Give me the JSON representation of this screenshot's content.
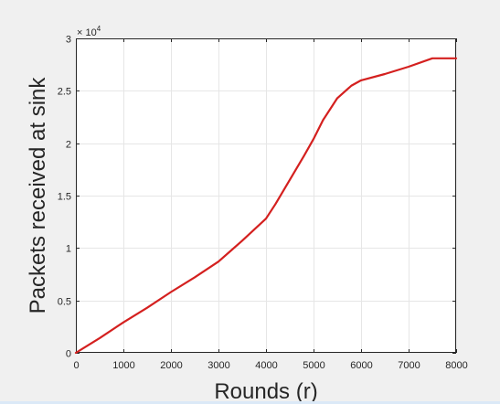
{
  "chart_data": {
    "type": "line",
    "title": "",
    "xlabel": "Rounds (r)",
    "ylabel": "Packets received at sink",
    "exponent_label": "× 10",
    "exponent_power": "4",
    "xlim": [
      0,
      8000
    ],
    "ylim": [
      0,
      3
    ],
    "x_ticks": [
      "0",
      "1000",
      "2000",
      "3000",
      "4000",
      "5000",
      "6000",
      "7000",
      "8000"
    ],
    "y_ticks": [
      "0",
      "0.5",
      "1",
      "1.5",
      "2",
      "2.5",
      "3"
    ],
    "grid": true,
    "line_color": "#d4201f",
    "series": [
      {
        "x": [
          0,
          500,
          1000,
          1500,
          2000,
          2500,
          3000,
          3500,
          4000,
          4200,
          4500,
          4800,
          5000,
          5200,
          5500,
          5800,
          6000,
          6500,
          7000,
          7500,
          8000
        ],
        "y": [
          0,
          0.14,
          0.29,
          0.43,
          0.58,
          0.72,
          0.87,
          1.07,
          1.28,
          1.42,
          1.65,
          1.88,
          2.04,
          2.22,
          2.43,
          2.55,
          2.6,
          2.66,
          2.73,
          2.81,
          2.81
        ]
      }
    ]
  }
}
